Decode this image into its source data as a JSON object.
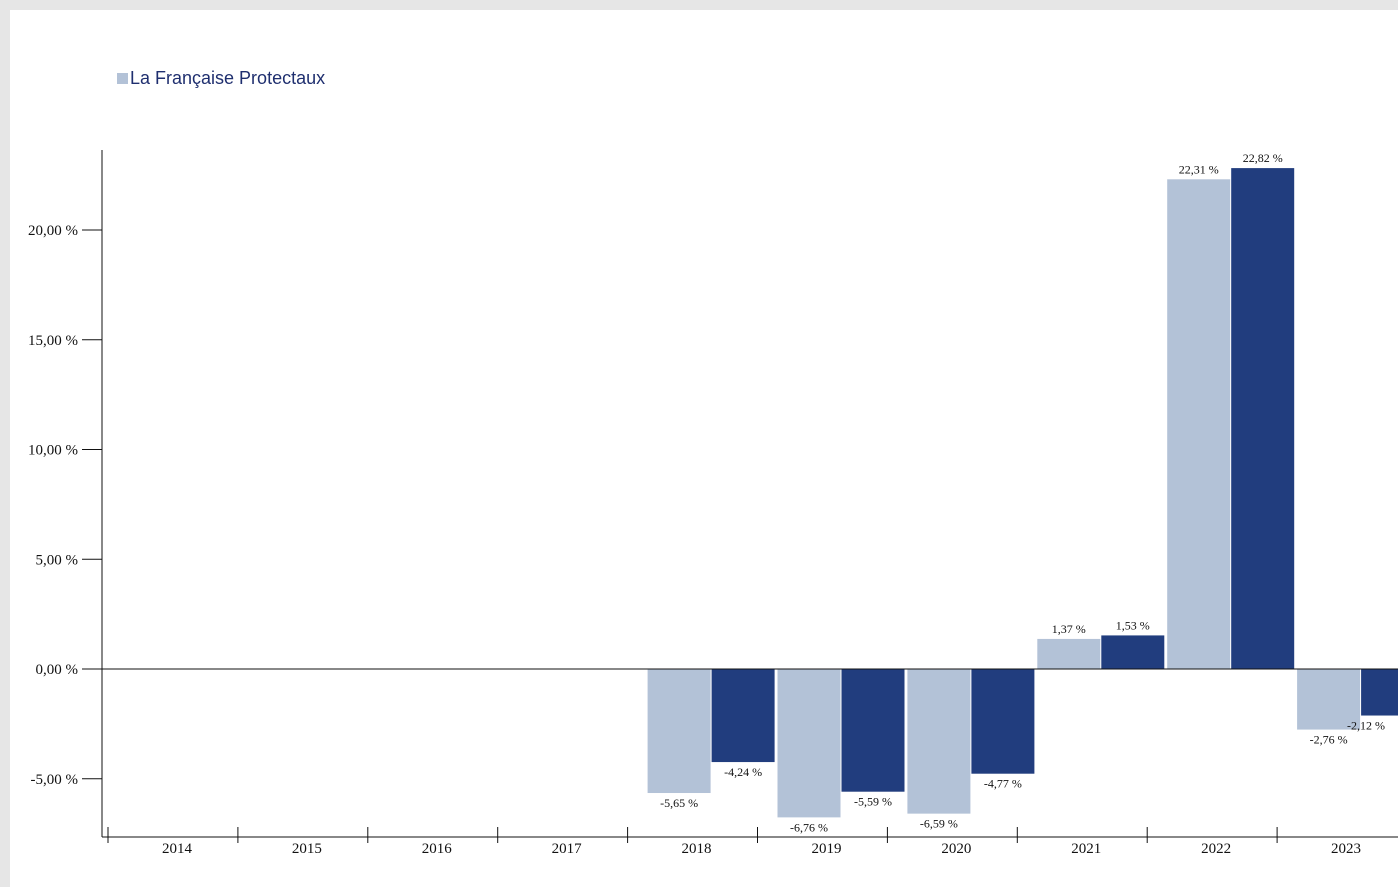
{
  "legend": {
    "label": "La Française Protectaux",
    "color": "#b3c2d7"
  },
  "chart_data": {
    "type": "bar",
    "categories": [
      "2014",
      "2015",
      "2016",
      "2017",
      "2018",
      "2019",
      "2020",
      "2021",
      "2022",
      "2023"
    ],
    "series": [
      {
        "name": "La Française Protectaux",
        "color": "#b3c2d7",
        "values": [
          null,
          null,
          null,
          null,
          -5.65,
          -6.76,
          -6.59,
          1.37,
          22.31,
          -2.76
        ],
        "labels": [
          "",
          "",
          "",
          "",
          "-5,65 %",
          "-6,76 %",
          "-6,59 %",
          "1,37 %",
          "22,31 %",
          "-2,76 %"
        ]
      },
      {
        "color": "#213d7e",
        "values": [
          null,
          null,
          null,
          null,
          -4.24,
          -5.59,
          -4.77,
          1.53,
          22.82,
          -2.12
        ],
        "labels": [
          "",
          "",
          "",
          "",
          "-4,24 %",
          "-5,59 %",
          "-4,77 %",
          "1,53 %",
          "22,82 %",
          "-2,12 %"
        ]
      }
    ],
    "yticks": [
      {
        "value": -5,
        "label": "-5,00 %"
      },
      {
        "value": 0,
        "label": "0,00 %"
      },
      {
        "value": 5,
        "label": "5,00 %"
      },
      {
        "value": 10,
        "label": "10,00 %"
      },
      {
        "value": 15,
        "label": "15,00 %"
      },
      {
        "value": 20,
        "label": "20,00 %"
      }
    ],
    "ylim": [
      -7.5,
      23.5
    ],
    "grid": false,
    "legend_position": "top-left"
  }
}
